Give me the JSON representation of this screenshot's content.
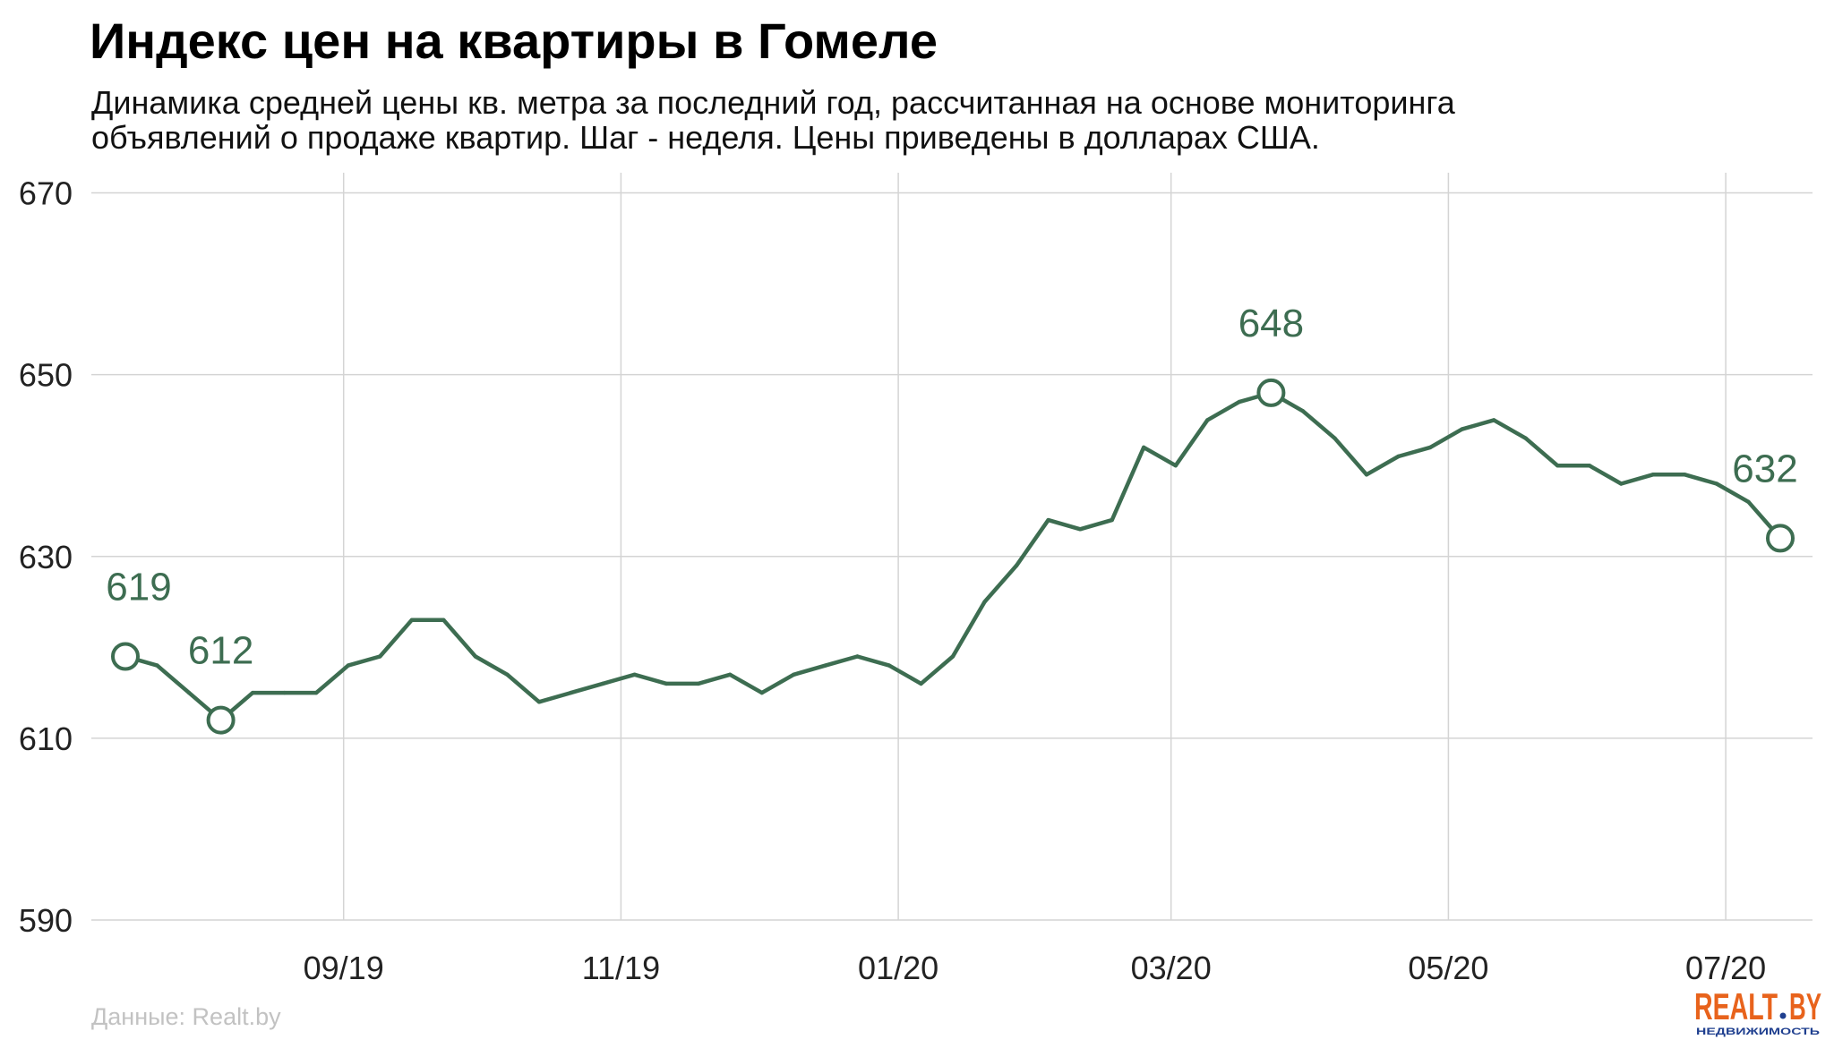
{
  "colors": {
    "line": "#3d6d51",
    "data_label": "#3d6d51",
    "grid": "#d4d4d4",
    "source_text": "#c2c2c2",
    "logo_orange": "#e8631c",
    "logo_blue": "#1f3f8f"
  },
  "logo": {
    "brand_left": "REALT",
    "brand_right": "BY",
    "tagline": "НЕДВИЖИМОСТЬ"
  },
  "chart_data": {
    "type": "line",
    "title": "Индекс цен на квартиры в Гомеле",
    "subtitle": [
      "Динамика средней цены кв. метра за последний год, рассчитанная на основе мониторинга",
      "объявлений о продаже квартир. Шаг - неделя. Цены приведены в долларах США."
    ],
    "source": "Данные: Realt.by",
    "grid": true,
    "ylim": [
      590,
      670
    ],
    "yticks": [
      590,
      610,
      630,
      650,
      670
    ],
    "xticks": [
      "09/19",
      "11/19",
      "01/20",
      "03/20",
      "05/20",
      "07/20"
    ],
    "x": [
      "2019-07-15",
      "2019-07-22",
      "2019-07-29",
      "2019-08-05",
      "2019-08-12",
      "2019-08-19",
      "2019-08-26",
      "2019-09-02",
      "2019-09-09",
      "2019-09-16",
      "2019-09-23",
      "2019-09-30",
      "2019-10-07",
      "2019-10-14",
      "2019-10-21",
      "2019-10-28",
      "2019-11-04",
      "2019-11-11",
      "2019-11-18",
      "2019-11-25",
      "2019-12-02",
      "2019-12-09",
      "2019-12-16",
      "2019-12-23",
      "2019-12-30",
      "2020-01-06",
      "2020-01-13",
      "2020-01-20",
      "2020-01-27",
      "2020-02-03",
      "2020-02-10",
      "2020-02-17",
      "2020-02-24",
      "2020-03-02",
      "2020-03-09",
      "2020-03-16",
      "2020-03-23",
      "2020-03-30",
      "2020-04-06",
      "2020-04-13",
      "2020-04-20",
      "2020-04-27",
      "2020-05-04",
      "2020-05-11",
      "2020-05-18",
      "2020-05-25",
      "2020-06-01",
      "2020-06-08",
      "2020-06-15",
      "2020-06-22",
      "2020-06-29",
      "2020-07-06",
      "2020-07-13"
    ],
    "y": [
      619,
      618,
      615,
      612,
      615,
      615,
      615,
      618,
      619,
      623,
      623,
      619,
      617,
      614,
      615,
      616,
      617,
      616,
      616,
      617,
      615,
      617,
      618,
      619,
      618,
      616,
      619,
      625,
      629,
      634,
      633,
      634,
      642,
      640,
      645,
      647,
      648,
      646,
      643,
      639,
      641,
      642,
      644,
      645,
      643,
      640,
      640,
      638,
      639,
      639,
      638,
      636,
      632
    ],
    "annotations": [
      {
        "x": "2019-07-15",
        "y": 619,
        "label": "619"
      },
      {
        "x": "2019-08-05",
        "y": 612,
        "label": "612"
      },
      {
        "x": "2020-03-23",
        "y": 648,
        "label": "648"
      },
      {
        "x": "2020-07-13",
        "y": 632,
        "label": "632"
      }
    ]
  }
}
